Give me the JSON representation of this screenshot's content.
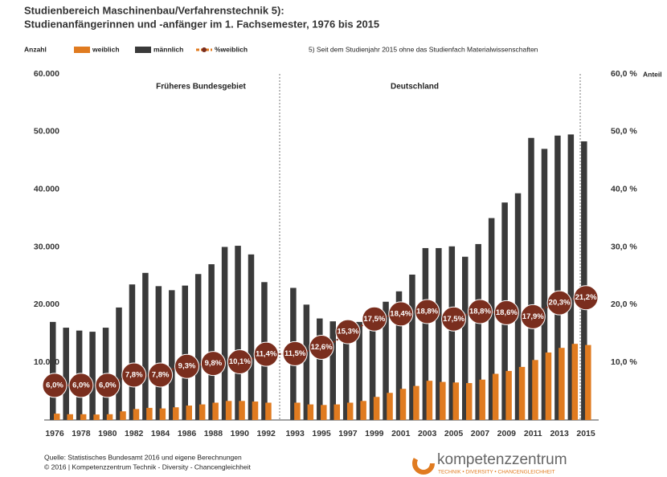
{
  "chart_data": {
    "type": "bar",
    "title": "Studienbereich Maschinenbau/Verfahrenstechnik 5):",
    "subtitle": "Studienanfängerinnen und -anfänger im 1. Fachsemester, 1976 bis 2015",
    "y_label": "Anzahl",
    "y2_label": "Anteil",
    "footnote": "5) Seit dem Studienjahr 2015 ohne das Studienfach Materialwissenschaften",
    "annotations": [
      "Früheres Bundesgebiet",
      "Deutschland"
    ],
    "source": [
      "Quelle: Statistisches Bundesamt 2016 und eigene Berechnungen",
      "© 2016 | Kompetenzzentrum Technik - Diversity - Chancengleichheit"
    ],
    "logo": {
      "name": "kompetenzzentrum",
      "tagline": "TECHNIK • DIVERSITY • CHANCENGLEICHHEIT"
    },
    "categories": [
      "1976",
      null,
      "1978",
      null,
      "1980",
      null,
      "1982",
      null,
      "1984",
      null,
      "1986",
      null,
      "1988",
      null,
      "1990",
      null,
      "1992",
      "1993",
      null,
      "1995",
      null,
      "1997",
      null,
      "1999",
      null,
      "2001",
      null,
      "2003",
      null,
      "2005",
      null,
      "2007",
      null,
      "2009",
      null,
      "2011",
      null,
      "2013",
      null,
      "2015"
    ],
    "series": [
      {
        "name": "weiblich",
        "color": "#e07b20",
        "values": [
          1100,
          1000,
          1000,
          950,
          1000,
          1500,
          1900,
          2100,
          2000,
          2200,
          2500,
          2700,
          3000,
          3300,
          3300,
          3200,
          3000,
          3000,
          2700,
          2600,
          2700,
          3000,
          3300,
          4000,
          4700,
          5400,
          5900,
          6800,
          6600,
          6500,
          6400,
          7000,
          8000,
          8500,
          9200,
          10400,
          11700,
          12500,
          13200,
          13000
        ]
      },
      {
        "name": "männlich",
        "color": "#3a3a3a",
        "values": [
          17000,
          16000,
          15500,
          15300,
          16000,
          19500,
          23500,
          25500,
          23200,
          22500,
          23300,
          25300,
          27000,
          30000,
          30200,
          28700,
          23900,
          22900,
          20000,
          17600,
          17100,
          16500,
          17000,
          19000,
          20500,
          22300,
          25200,
          29800,
          29800,
          30100,
          28300,
          30500,
          35000,
          37700,
          39300,
          48900,
          47000,
          49300,
          49500,
          48300
        ]
      },
      {
        "name": "%weiblich",
        "color": "#7a2e1e",
        "type": "line",
        "axis": "y2",
        "values": [
          6.0,
          6.0,
          6.0,
          6.0,
          6.0,
          7.1,
          7.8,
          7.6,
          7.8,
          8.9,
          9.3,
          9.6,
          9.8,
          10.0,
          10.1,
          10.7,
          11.4,
          11.5,
          12.0,
          12.6,
          13.6,
          15.3,
          16.3,
          17.5,
          18.0,
          18.4,
          18.7,
          18.8,
          18.2,
          17.5,
          18.3,
          18.8,
          18.7,
          18.6,
          18.4,
          17.9,
          19.5,
          20.3,
          21.0,
          21.2
        ],
        "value_labels": [
          "6,0%",
          null,
          "6,0%",
          null,
          "6,0%",
          null,
          "7,8%",
          null,
          "7,8%",
          null,
          "9,3%",
          null,
          "9,8%",
          null,
          "10,1%",
          null,
          "11,4%",
          "11,5%",
          null,
          "12,6%",
          null,
          "15,3%",
          null,
          "17,5%",
          null,
          "18,4%",
          null,
          "18,8%",
          null,
          "17,5%",
          null,
          "18,8%",
          null,
          "18,6%",
          null,
          "17,9%",
          null,
          "20,3%",
          null,
          "21,2%"
        ]
      }
    ],
    "ylim": [
      0,
      60000
    ],
    "yticks": [
      {
        "value": 10000,
        "label": "10.000"
      },
      {
        "value": 20000,
        "label": "20.000"
      },
      {
        "value": 30000,
        "label": "30.000"
      },
      {
        "value": 40000,
        "label": "40.000"
      },
      {
        "value": 50000,
        "label": "50.000"
      },
      {
        "value": 60000,
        "label": "60.000"
      }
    ],
    "y2lim": [
      0,
      60
    ],
    "y2ticks": [
      {
        "value": 10,
        "label": "10,0 %"
      },
      {
        "value": 20,
        "label": "20,0 %"
      },
      {
        "value": 30,
        "label": "30,0 %"
      },
      {
        "value": 40,
        "label": "40,0 %"
      },
      {
        "value": 50,
        "label": "50,0 %"
      },
      {
        "value": 60,
        "label": "60,0 %"
      }
    ]
  }
}
